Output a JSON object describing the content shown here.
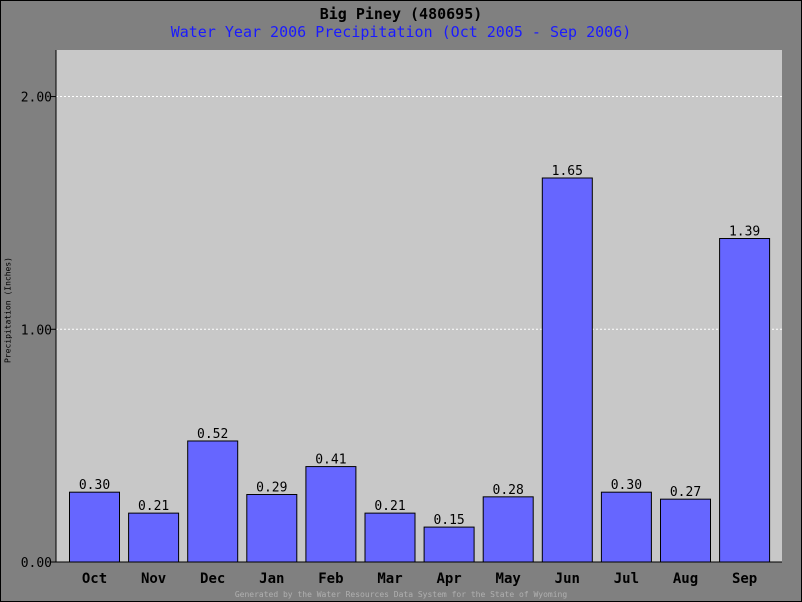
{
  "header": {
    "title": "Big Piney (480695)",
    "subtitle": "Water Year 2006 Precipitation (Oct 2005 - Sep 2006)"
  },
  "footer": {
    "text": "Generated by the Water Resources Data System for the State of Wyoming"
  },
  "colors": {
    "bar": "#6666ff",
    "plot_background": "#c8c8c8",
    "page_background": "#808080",
    "subtitle": "#1a1aff",
    "grid": "#ffffff"
  },
  "chart_data": {
    "type": "bar",
    "title": "Big Piney (480695)",
    "subtitle": "Water Year 2006 Precipitation (Oct 2005 - Sep 2006)",
    "xlabel": "",
    "ylabel": "Precipitation (Inches)",
    "ylim": [
      0,
      2.2
    ],
    "yticks": [
      "0.00",
      "1.00",
      "2.00"
    ],
    "ytick_values": [
      0,
      1,
      2
    ],
    "grid": "horizontal dashed",
    "categories": [
      "Oct",
      "Nov",
      "Dec",
      "Jan",
      "Feb",
      "Mar",
      "Apr",
      "May",
      "Jun",
      "Jul",
      "Aug",
      "Sep"
    ],
    "values": [
      0.3,
      0.21,
      0.52,
      0.29,
      0.41,
      0.21,
      0.15,
      0.28,
      1.65,
      0.3,
      0.27,
      1.39
    ],
    "labels": [
      "0.30",
      "0.21",
      "0.52",
      "0.29",
      "0.41",
      "0.21",
      "0.15",
      "0.28",
      "1.65",
      "0.30",
      "0.27",
      "1.39"
    ]
  }
}
